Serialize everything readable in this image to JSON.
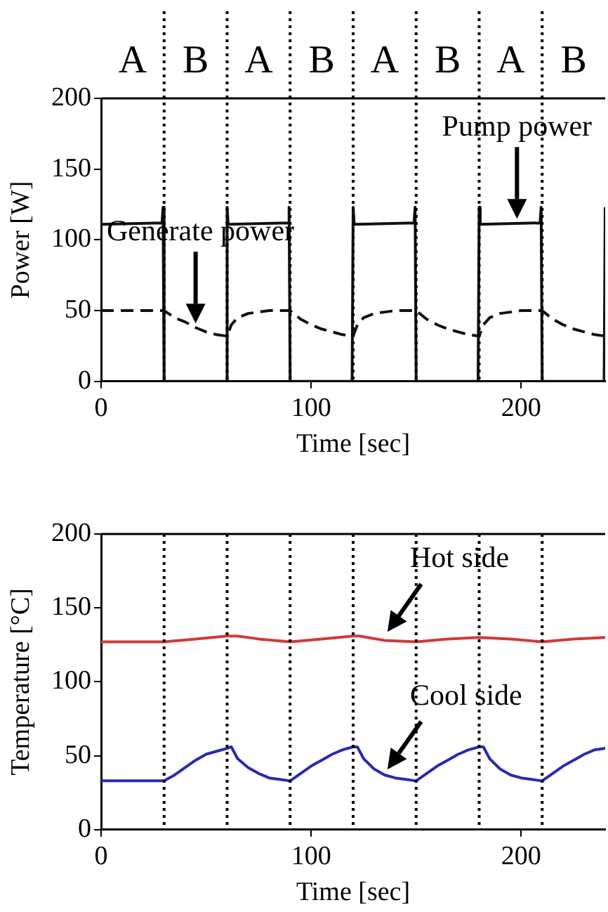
{
  "chart_data": [
    {
      "type": "line",
      "xlabel": "Time [sec]",
      "ylabel": "Power [W]",
      "xlim": [
        0,
        240
      ],
      "xticks": [
        0,
        100,
        200
      ],
      "ylim": [
        0,
        200
      ],
      "yticks": [
        0,
        50,
        100,
        150,
        200
      ],
      "grid": false,
      "legend": false,
      "marker": "none",
      "series": [
        {
          "color": "#111111",
          "line_style": "solid",
          "x": [
            0,
            29,
            29.5,
            30,
            59.5,
            60,
            60.5,
            89,
            89.5,
            90,
            119.5,
            120,
            120.5,
            149,
            149.5,
            150,
            179.5,
            180,
            180.5,
            209,
            209.5,
            210,
            239.5,
            240
          ],
          "values": [
            111,
            112,
            123,
            0,
            0,
            123,
            111,
            112,
            123,
            0,
            0,
            123,
            111,
            112,
            123,
            0,
            0,
            123,
            111,
            112,
            123,
            0,
            0,
            123
          ]
        },
        {
          "color": "#111111",
          "line_style": "dashed",
          "x": [
            0,
            30,
            35,
            40,
            45,
            50,
            55,
            60,
            62,
            65,
            70,
            75,
            80,
            90,
            95,
            100,
            105,
            110,
            115,
            120,
            122,
            125,
            130,
            135,
            140,
            150,
            155,
            160,
            165,
            170,
            175,
            180,
            182,
            185,
            190,
            195,
            200,
            210,
            215,
            220,
            225,
            230,
            235,
            240
          ],
          "values": [
            50,
            50,
            45,
            42,
            38,
            35,
            33,
            32,
            40,
            45,
            48,
            49,
            50,
            50,
            44,
            40,
            37,
            35,
            33,
            32,
            40,
            45,
            48,
            49,
            50,
            50,
            44,
            40,
            37,
            35,
            33,
            32,
            40,
            45,
            48,
            49,
            50,
            50,
            44,
            40,
            37,
            35,
            33,
            32
          ]
        }
      ],
      "ref_lines": [
        {
          "axis": "x",
          "value": 30,
          "line_style": "dotted"
        },
        {
          "axis": "x",
          "value": 60,
          "line_style": "dotted"
        },
        {
          "axis": "x",
          "value": 90,
          "line_style": "dotted"
        },
        {
          "axis": "x",
          "value": 120,
          "line_style": "dotted"
        },
        {
          "axis": "x",
          "value": 150,
          "line_style": "dotted"
        },
        {
          "axis": "x",
          "value": 180,
          "line_style": "dotted"
        },
        {
          "axis": "x",
          "value": 210,
          "line_style": "dotted"
        }
      ],
      "annotations": [
        "A",
        "B",
        "A",
        "B",
        "A",
        "B",
        "A",
        "B",
        {
          "text": "Generate power",
          "x": 45,
          "y": 38
        },
        {
          "text": "Pump power",
          "x": 198,
          "y": 112
        }
      ]
    },
    {
      "type": "line",
      "xlabel": "Time [sec]",
      "ylabel": "Temperature [°C]",
      "xlim": [
        0,
        240
      ],
      "xticks": [
        0,
        100,
        200
      ],
      "ylim": [
        0,
        200
      ],
      "yticks": [
        0,
        50,
        100,
        150,
        200
      ],
      "grid": false,
      "legend": false,
      "marker": "none",
      "series": [
        {
          "color": "#d03a3a",
          "line_style": "solid",
          "x": [
            0,
            30,
            45,
            60,
            65,
            75,
            90,
            105,
            120,
            123,
            135,
            150,
            165,
            180,
            195,
            210,
            225,
            240
          ],
          "values": [
            127,
            127,
            129,
            131,
            131,
            129,
            127,
            129,
            131,
            131,
            128,
            127,
            129,
            130,
            129,
            127,
            129,
            130
          ]
        },
        {
          "color": "#2a2ab0",
          "line_style": "solid",
          "x": [
            0,
            30,
            35,
            40,
            45,
            50,
            55,
            60,
            62,
            65,
            70,
            75,
            80,
            85,
            90,
            95,
            100,
            105,
            110,
            115,
            120,
            122,
            125,
            130,
            135,
            140,
            145,
            150,
            155,
            160,
            165,
            170,
            175,
            180,
            182,
            185,
            190,
            195,
            200,
            205,
            210,
            215,
            220,
            225,
            230,
            235,
            240
          ],
          "values": [
            33,
            33,
            37,
            42,
            47,
            51,
            53,
            55,
            56,
            48,
            42,
            38,
            35,
            34,
            33,
            38,
            43,
            47,
            51,
            54,
            56,
            56,
            48,
            41,
            37,
            35,
            34,
            33,
            38,
            43,
            47,
            51,
            54,
            56,
            56,
            48,
            41,
            37,
            35,
            34,
            33,
            38,
            43,
            47,
            51,
            54,
            55
          ]
        }
      ],
      "ref_lines": [
        {
          "axis": "x",
          "value": 30,
          "line_style": "dotted"
        },
        {
          "axis": "x",
          "value": 60,
          "line_style": "dotted"
        },
        {
          "axis": "x",
          "value": 90,
          "line_style": "dotted"
        },
        {
          "axis": "x",
          "value": 120,
          "line_style": "dotted"
        },
        {
          "axis": "x",
          "value": 150,
          "line_style": "dotted"
        },
        {
          "axis": "x",
          "value": 180,
          "line_style": "dotted"
        },
        {
          "axis": "x",
          "value": 210,
          "line_style": "dotted"
        }
      ],
      "annotations": [
        {
          "text": "Hot side",
          "x": 135,
          "y": 130
        },
        {
          "text": "Cool side",
          "x": 135,
          "y": 37
        }
      ]
    }
  ]
}
